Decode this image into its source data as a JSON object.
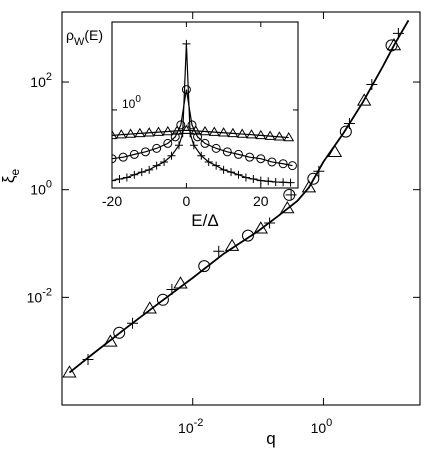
{
  "chart_data": [
    {
      "type": "scatter",
      "xscale": "log",
      "yscale": "log",
      "xlabel": "q",
      "ylabel": "ξ",
      "ylabel_sub": "e",
      "xlim": [
        0.0001,
        30
      ],
      "ylim": [
        0.0001,
        2000
      ],
      "xticks": [
        {
          "value": 0.01,
          "base": "10",
          "exp": "-2"
        },
        {
          "value": 1,
          "base": "10",
          "exp": "0"
        }
      ],
      "yticks": [
        {
          "value": 0.01,
          "base": "10",
          "exp": "-2"
        },
        {
          "value": 1,
          "base": "10",
          "exp": "0"
        },
        {
          "value": 100,
          "base": "10",
          "exp": "2"
        }
      ],
      "grid": false,
      "legend": "none",
      "line": {
        "x": [
          0.00013,
          0.0003,
          0.001,
          0.003,
          0.01,
          0.03,
          0.1,
          0.2,
          0.4,
          0.6,
          1,
          2,
          4,
          8,
          12,
          20
        ],
        "y": [
          0.0004,
          0.0009,
          0.0028,
          0.0077,
          0.023,
          0.065,
          0.17,
          0.32,
          0.62,
          1.1,
          3.3,
          11,
          42,
          190,
          480,
          1400
        ]
      },
      "series": [
        {
          "marker": "triangle",
          "x": [
            0.00013,
            0.00055,
            0.0022,
            0.0065,
            0.04,
            0.11,
            0.28,
            0.6,
            1.5,
            4.2,
            12
          ],
          "y": [
            0.0004,
            0.0015,
            0.0062,
            0.018,
            0.09,
            0.19,
            0.45,
            1.1,
            5,
            45,
            480
          ]
        },
        {
          "marker": "circle",
          "x": [
            0.00075,
            0.0035,
            0.015,
            0.07,
            0.3,
            0.7,
            2.2,
            11
          ],
          "y": [
            0.0022,
            0.009,
            0.038,
            0.14,
            0.8,
            1.6,
            12,
            480
          ]
        },
        {
          "marker": "plus",
          "x": [
            0.00025,
            0.0012,
            0.0048,
            0.025,
            0.15,
            0.32,
            0.85,
            2.5,
            5.5,
            14
          ],
          "y": [
            0.0007,
            0.0033,
            0.014,
            0.072,
            0.24,
            0.8,
            2.2,
            17,
            90,
            800
          ]
        }
      ]
    },
    {
      "type": "line",
      "inset": true,
      "title": "ρ",
      "title_sub": "W",
      "title_suffix": "(E)",
      "xlabel": "E/Δ",
      "yscale": "log",
      "xlim": [
        -20,
        30
      ],
      "ylim": [
        0.07,
        20
      ],
      "xticks": [
        -20,
        0,
        20
      ],
      "yticks": [
        {
          "value": 1,
          "base": "10",
          "exp": "0"
        }
      ],
      "grid": false,
      "legend": "none",
      "series": [
        {
          "marker": "triangle",
          "x": [
            -20,
            -17.5,
            -15,
            -12.5,
            -10,
            -7.5,
            -5,
            -2.5,
            0,
            2.5,
            5,
            7.5,
            10,
            12.5,
            15,
            17.5,
            20,
            22.5,
            25,
            27.5
          ],
          "y": [
            0.42,
            0.43,
            0.44,
            0.45,
            0.46,
            0.47,
            0.48,
            0.49,
            0.5,
            0.49,
            0.48,
            0.47,
            0.46,
            0.45,
            0.44,
            0.43,
            0.42,
            0.41,
            0.4,
            0.39
          ]
        },
        {
          "marker": "circle",
          "x": [
            -20,
            -17,
            -14,
            -11,
            -8,
            -5,
            -3,
            -1.5,
            0,
            1.5,
            3,
            5,
            8,
            11,
            14,
            17,
            20,
            23,
            26,
            28.5
          ],
          "y": [
            0.19,
            0.2,
            0.22,
            0.24,
            0.27,
            0.32,
            0.4,
            0.6,
            2.0,
            0.6,
            0.4,
            0.32,
            0.27,
            0.24,
            0.22,
            0.2,
            0.19,
            0.17,
            0.16,
            0.15
          ]
        },
        {
          "marker": "plus",
          "x": [
            -20,
            -18,
            -16,
            -14,
            -12,
            -10,
            -8,
            -6,
            -4,
            -2,
            -1,
            0,
            1,
            2,
            4,
            6,
            8,
            10,
            12,
            14,
            16,
            18,
            20,
            22,
            24,
            26,
            28
          ],
          "y": [
            0.09,
            0.095,
            0.1,
            0.11,
            0.12,
            0.13,
            0.15,
            0.17,
            0.21,
            0.3,
            0.45,
            9.5,
            0.45,
            0.3,
            0.21,
            0.17,
            0.15,
            0.13,
            0.12,
            0.11,
            0.1,
            0.095,
            0.09,
            0.088,
            0.086,
            0.085,
            0.084
          ]
        }
      ]
    }
  ]
}
